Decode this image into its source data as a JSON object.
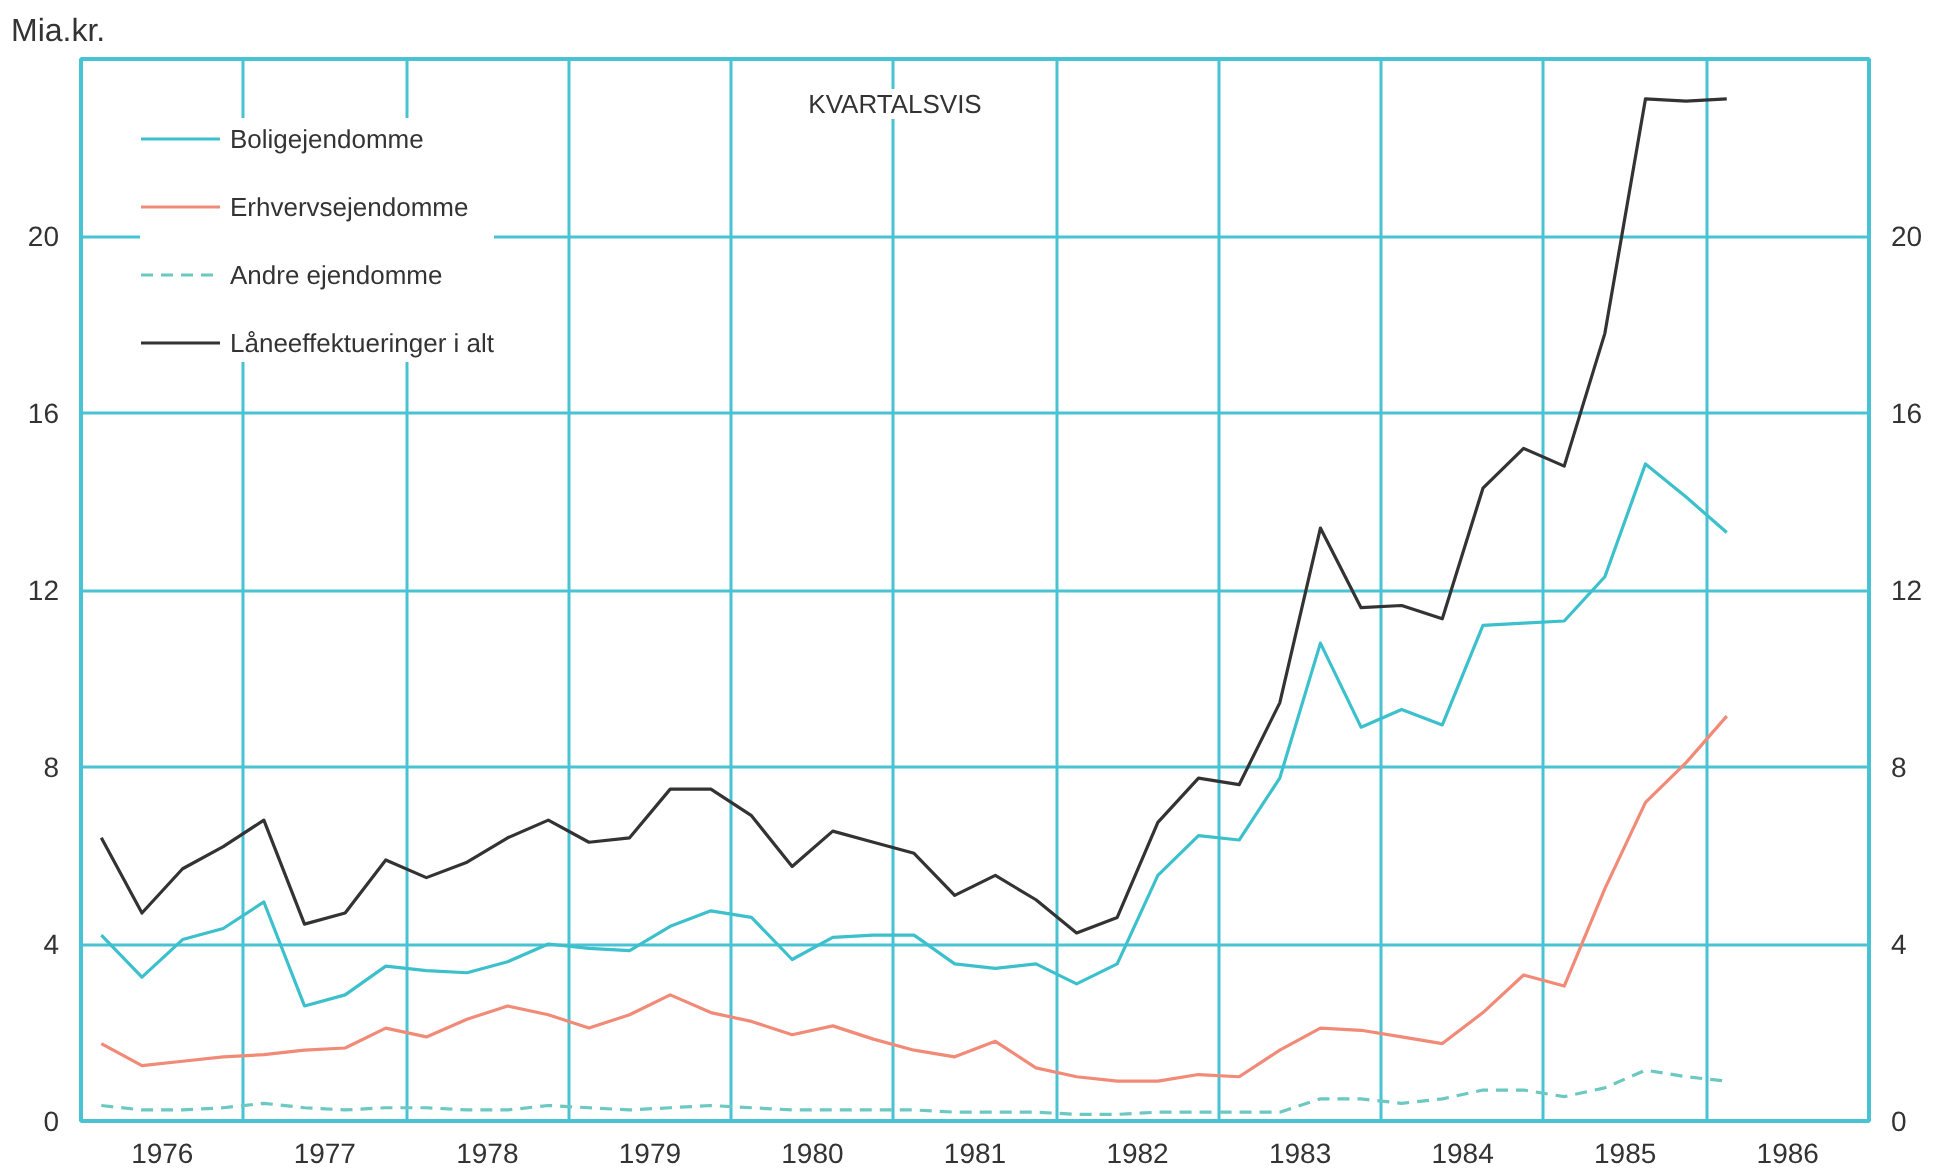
{
  "chart_data": {
    "type": "line",
    "title": "KVARTALSVIS",
    "ylabel": "Mia.kr.",
    "x": [
      1976.125,
      1976.375,
      1976.625,
      1976.875,
      1977.125,
      1977.375,
      1977.625,
      1977.875,
      1978.125,
      1978.375,
      1978.625,
      1978.875,
      1979.125,
      1979.375,
      1979.625,
      1979.875,
      1980.125,
      1980.375,
      1980.625,
      1980.875,
      1981.125,
      1981.375,
      1981.625,
      1981.875,
      1982.125,
      1982.375,
      1982.625,
      1982.875,
      1983.125,
      1983.375,
      1983.625,
      1983.875,
      1984.125,
      1984.375,
      1984.625,
      1984.875,
      1985.125,
      1985.375,
      1985.625,
      1985.875,
      1986.125
    ],
    "series": [
      {
        "name": "Boligejendomme",
        "color": "#3cc0cc",
        "line_style": "solid",
        "values": [
          4.2,
          3.25,
          4.1,
          4.35,
          4.95,
          2.6,
          2.85,
          3.5,
          3.4,
          3.35,
          3.6,
          4.0,
          3.9,
          3.85,
          4.4,
          4.75,
          4.6,
          3.65,
          4.15,
          4.2,
          4.2,
          3.55,
          3.45,
          3.55,
          3.1,
          3.55,
          5.55,
          6.45,
          6.35,
          7.75,
          10.8,
          8.9,
          9.3,
          8.95,
          11.2,
          11.25,
          11.3,
          12.3,
          14.85,
          14.1,
          13.3
        ]
      },
      {
        "name": "Erhvervsejendomme",
        "color": "#f28a78",
        "line_style": "solid",
        "values": [
          1.75,
          1.25,
          1.35,
          1.45,
          1.5,
          1.6,
          1.65,
          2.1,
          1.9,
          2.3,
          2.6,
          2.4,
          2.1,
          2.4,
          2.85,
          2.45,
          2.25,
          1.95,
          2.15,
          1.85,
          1.6,
          1.45,
          1.8,
          1.2,
          1.0,
          0.9,
          0.9,
          1.05,
          1.0,
          1.6,
          2.1,
          2.05,
          1.9,
          1.75,
          2.45,
          3.3,
          3.05,
          5.25,
          7.2,
          8.1,
          9.15
        ]
      },
      {
        "name": "Andre ejendomme",
        "color": "#6cc8c0",
        "line_style": "dashed",
        "values": [
          0.35,
          0.25,
          0.25,
          0.3,
          0.4,
          0.3,
          0.25,
          0.3,
          0.3,
          0.25,
          0.25,
          0.35,
          0.3,
          0.25,
          0.3,
          0.35,
          0.3,
          0.25,
          0.25,
          0.25,
          0.25,
          0.2,
          0.2,
          0.2,
          0.15,
          0.15,
          0.2,
          0.2,
          0.2,
          0.2,
          0.5,
          0.5,
          0.4,
          0.5,
          0.7,
          0.7,
          0.55,
          0.75,
          1.15,
          1.0,
          0.9
        ]
      },
      {
        "name": "Låneeffektueringer i alt",
        "color": "#333333",
        "line_style": "solid",
        "values": [
          6.4,
          4.7,
          5.7,
          6.2,
          6.8,
          4.45,
          4.7,
          5.9,
          5.5,
          5.85,
          6.4,
          6.8,
          6.3,
          6.4,
          7.5,
          7.5,
          6.9,
          5.75,
          6.55,
          6.3,
          6.05,
          5.1,
          5.55,
          5.0,
          4.25,
          4.6,
          6.75,
          7.75,
          7.6,
          9.45,
          13.4,
          11.6,
          11.65,
          11.35,
          14.3,
          15.2,
          14.8,
          17.8,
          23.1,
          23.05,
          23.1
        ]
      }
    ],
    "xlim": [
      1976,
      1987
    ],
    "xticks": [
      {
        "value": 1976,
        "label": null
      },
      {
        "value": 1976.5,
        "label": "1976"
      },
      {
        "value": 1977,
        "label": null
      },
      {
        "value": 1977.5,
        "label": "1977"
      },
      {
        "value": 1978,
        "label": null
      },
      {
        "value": 1978.5,
        "label": "1978"
      },
      {
        "value": 1979,
        "label": null
      },
      {
        "value": 1979.5,
        "label": "1979"
      },
      {
        "value": 1980,
        "label": null
      },
      {
        "value": 1980.5,
        "label": "1980"
      },
      {
        "value": 1981,
        "label": null
      },
      {
        "value": 1981.5,
        "label": "1981"
      },
      {
        "value": 1982,
        "label": null
      },
      {
        "value": 1982.5,
        "label": "1982"
      },
      {
        "value": 1983,
        "label": null
      },
      {
        "value": 1983.5,
        "label": "1983"
      },
      {
        "value": 1984,
        "label": null
      },
      {
        "value": 1984.5,
        "label": "1984"
      },
      {
        "value": 1985,
        "label": null
      },
      {
        "value": 1985.5,
        "label": "1985"
      },
      {
        "value": 1986,
        "label": null
      },
      {
        "value": 1986.5,
        "label": "1986"
      },
      {
        "value": 1987,
        "label": null
      }
    ],
    "ylim": [
      0,
      24
    ],
    "yticks": [
      0,
      4,
      8,
      12,
      16,
      20
    ],
    "y2lim": [
      0,
      24
    ],
    "y2ticks": [
      0,
      4,
      8,
      12,
      16,
      20
    ],
    "grid": true,
    "legend": "top left",
    "marker": "none"
  }
}
